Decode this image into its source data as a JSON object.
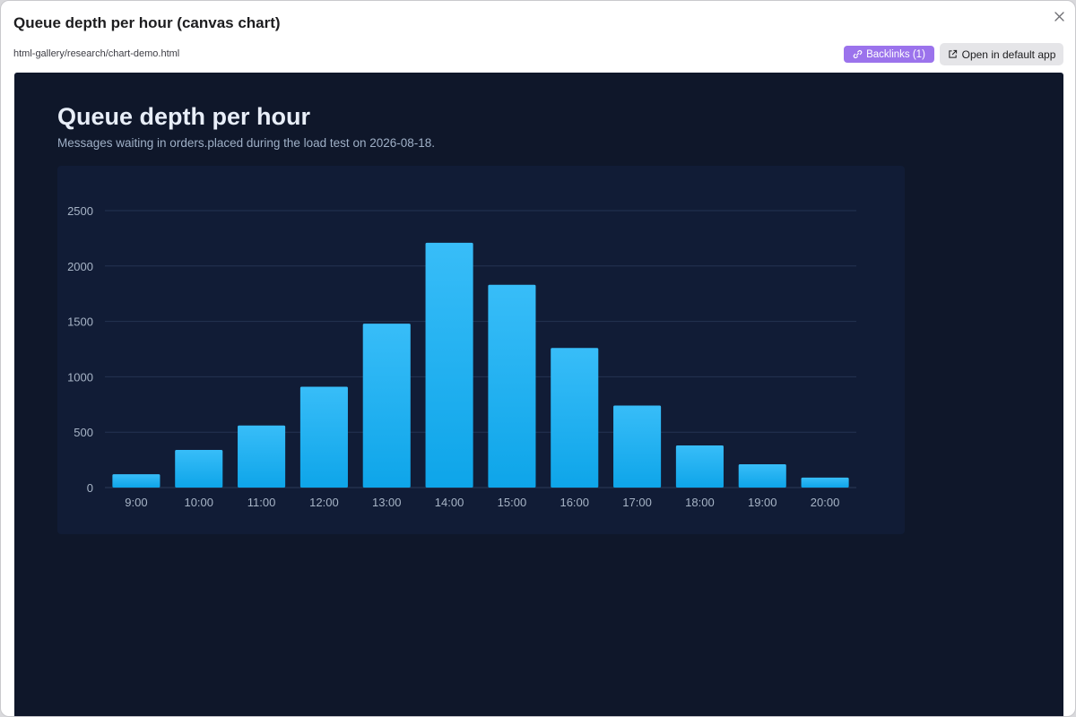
{
  "dialog": {
    "title": "Queue depth per hour (canvas chart)",
    "path": "html-gallery/research/chart-demo.html",
    "backlinks_label": "Backlinks (1)",
    "open_label": "Open in default app",
    "accent": "#9b73ec"
  },
  "page": {
    "heading": "Queue depth per hour",
    "subtitle": "Messages waiting in orders.placed during the load test on 2026-08-18."
  },
  "chart_data": {
    "type": "bar",
    "categories": [
      "9:00",
      "10:00",
      "11:00",
      "12:00",
      "13:00",
      "14:00",
      "15:00",
      "16:00",
      "17:00",
      "18:00",
      "19:00",
      "20:00"
    ],
    "values": [
      120,
      340,
      560,
      910,
      1480,
      2210,
      1830,
      1260,
      740,
      380,
      210,
      90
    ],
    "title": "",
    "xlabel": "",
    "ylabel": "",
    "ylim": [
      0,
      2500
    ],
    "yticks": [
      0,
      500,
      1000,
      1500,
      2000,
      2500
    ],
    "grid": true,
    "bar_color_top": "#38bdf8",
    "bar_color_bottom": "#0ea5e9"
  }
}
